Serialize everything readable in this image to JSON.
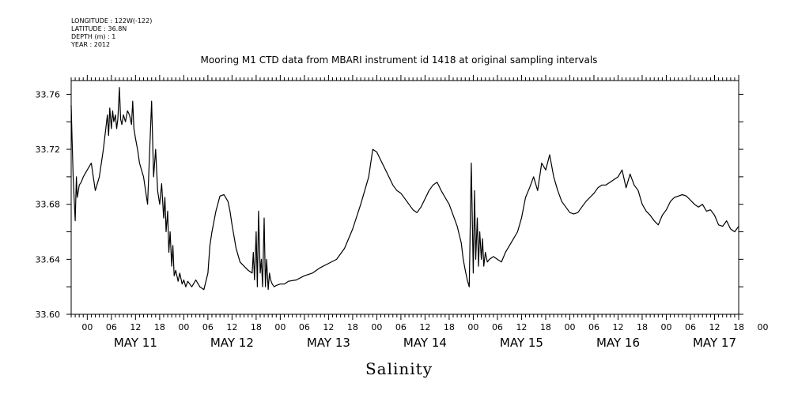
{
  "header": {
    "longitude": "LONGITUDE : 122W(-122)",
    "latitude": "LATITUDE : 36.8N",
    "depth": "DEPTH (m) : 1",
    "year": "YEAR : 2012"
  },
  "chart_data": {
    "type": "line",
    "title": "Mooring M1 CTD data from MBARI instrument id 1418 at original sampling intervals",
    "ylabel": "Salinity",
    "xlabel": "",
    "x_unit": "hours since 2012-05-11 00:00",
    "xlim": [
      -4,
      162
    ],
    "ylim": [
      33.6,
      33.77
    ],
    "yticks": [
      33.6,
      33.64,
      33.68,
      33.72,
      33.76
    ],
    "ytick_labels": [
      "33.60",
      "33.64",
      "33.68",
      "33.72",
      "33.76"
    ],
    "hour_ticks": [
      "00",
      "06",
      "12",
      "18",
      "00",
      "06",
      "12",
      "18",
      "00",
      "06",
      "12",
      "18",
      "00",
      "06",
      "12",
      "18",
      "00",
      "06",
      "12",
      "18",
      "00",
      "06",
      "12",
      "18",
      "00",
      "06",
      "12",
      "18",
      "00"
    ],
    "day_labels": [
      "MAY 11",
      "MAY 12",
      "MAY 13",
      "MAY 14",
      "MAY 15",
      "MAY 16",
      "MAY 17"
    ],
    "grid": false,
    "series": [
      {
        "color": "#000000",
        "x": [
          -4,
          -3.8,
          -3.5,
          -3.2,
          -3,
          -2.7,
          -2.5,
          -2.2,
          -2,
          -1.5,
          -1,
          0,
          1,
          2,
          3,
          4,
          5,
          5.3,
          5.6,
          6,
          6.3,
          6.6,
          7,
          7.3,
          7.6,
          8,
          8.3,
          8.6,
          9,
          9.5,
          10,
          10.5,
          11,
          11.3,
          11.6,
          12,
          12.5,
          13,
          14,
          15,
          16,
          16.5,
          17,
          17.5,
          18,
          18.5,
          19,
          19.3,
          19.6,
          20,
          20.3,
          20.6,
          21,
          21.3,
          21.6,
          22,
          22.3,
          22.6,
          23,
          23.3,
          23.6,
          24,
          24.5,
          25,
          26,
          27,
          28,
          29,
          30,
          30.5,
          31,
          32,
          33,
          34,
          35,
          35.5,
          36,
          37,
          38,
          39,
          40,
          41,
          41.3,
          41.6,
          42,
          42.3,
          42.6,
          43,
          43.3,
          43.6,
          44,
          44.3,
          44.6,
          45,
          45.3,
          45.6,
          46,
          46.5,
          47,
          48,
          49,
          50,
          52,
          54,
          56,
          58,
          60,
          62,
          64,
          66,
          68,
          70,
          71,
          72,
          73,
          74,
          75,
          76,
          77,
          78,
          79,
          80,
          81,
          82,
          83,
          84,
          85,
          86,
          87,
          88,
          89,
          90,
          91,
          92,
          93,
          93.5,
          94,
          94.5,
          95,
          95.5,
          96,
          96.3,
          96.6,
          97,
          97.3,
          97.6,
          98,
          98.3,
          98.6,
          99,
          99.5,
          100,
          101,
          102,
          103,
          104,
          105,
          106,
          107,
          108,
          109,
          110,
          111,
          112,
          113,
          114,
          115,
          116,
          117,
          118,
          119,
          120,
          121,
          122,
          123,
          124,
          125,
          126,
          127,
          128,
          129,
          130,
          131,
          132,
          133,
          134,
          135,
          136,
          137,
          138,
          139,
          140,
          141,
          142,
          143,
          144,
          145,
          146,
          147,
          148,
          149,
          150,
          151,
          152,
          153,
          154,
          155,
          156,
          157,
          158,
          159,
          160,
          161,
          162
        ],
        "y": [
          33.752,
          33.73,
          33.7,
          33.68,
          33.668,
          33.7,
          33.685,
          33.69,
          33.694,
          33.696,
          33.7,
          33.705,
          33.71,
          33.69,
          33.7,
          33.72,
          33.745,
          33.73,
          33.75,
          33.735,
          33.748,
          33.74,
          33.745,
          33.735,
          33.742,
          33.765,
          33.742,
          33.738,
          33.745,
          33.74,
          33.748,
          33.745,
          33.738,
          33.755,
          33.735,
          33.728,
          33.72,
          33.71,
          33.7,
          33.68,
          33.755,
          33.7,
          33.72,
          33.69,
          33.68,
          33.695,
          33.67,
          33.685,
          33.66,
          33.675,
          33.645,
          33.66,
          33.635,
          33.65,
          33.628,
          33.632,
          33.628,
          33.624,
          33.63,
          33.626,
          33.622,
          33.625,
          33.62,
          33.624,
          33.62,
          33.625,
          33.62,
          33.618,
          33.63,
          33.65,
          33.66,
          33.675,
          33.686,
          33.687,
          33.682,
          33.675,
          33.665,
          33.648,
          33.638,
          33.635,
          33.632,
          33.63,
          33.645,
          33.625,
          33.66,
          33.62,
          33.675,
          33.63,
          33.64,
          33.62,
          33.67,
          33.62,
          33.64,
          33.618,
          33.63,
          33.625,
          33.622,
          33.62,
          33.621,
          33.622,
          33.622,
          33.624,
          33.625,
          33.628,
          33.63,
          33.634,
          33.637,
          33.64,
          33.648,
          33.662,
          33.68,
          33.7,
          33.72,
          33.718,
          33.712,
          33.706,
          33.7,
          33.694,
          33.69,
          33.688,
          33.684,
          33.68,
          33.676,
          33.674,
          33.678,
          33.684,
          33.69,
          33.694,
          33.696,
          33.69,
          33.685,
          33.68,
          33.672,
          33.664,
          33.652,
          33.64,
          33.632,
          33.625,
          33.62,
          33.71,
          33.63,
          33.69,
          33.64,
          33.67,
          33.635,
          33.66,
          33.64,
          33.655,
          33.635,
          33.645,
          33.638,
          33.64,
          33.642,
          33.64,
          33.638,
          33.645,
          33.65,
          33.655,
          33.66,
          33.67,
          33.685,
          33.692,
          33.7,
          33.69,
          33.71,
          33.705,
          33.716,
          33.7,
          33.69,
          33.682,
          33.678,
          33.674,
          33.673,
          33.674,
          33.678,
          33.682,
          33.685,
          33.688,
          33.692,
          33.694,
          33.694,
          33.696,
          33.698,
          33.7,
          33.705,
          33.692,
          33.702,
          33.694,
          33.69,
          33.68,
          33.675,
          33.672,
          33.668,
          33.665,
          33.672,
          33.676,
          33.682,
          33.685,
          33.686,
          33.687,
          33.686,
          33.683,
          33.68,
          33.678,
          33.68,
          33.675,
          33.676,
          33.672,
          33.665,
          33.664,
          33.668,
          33.662,
          33.66,
          33.664
        ]
      }
    ]
  }
}
